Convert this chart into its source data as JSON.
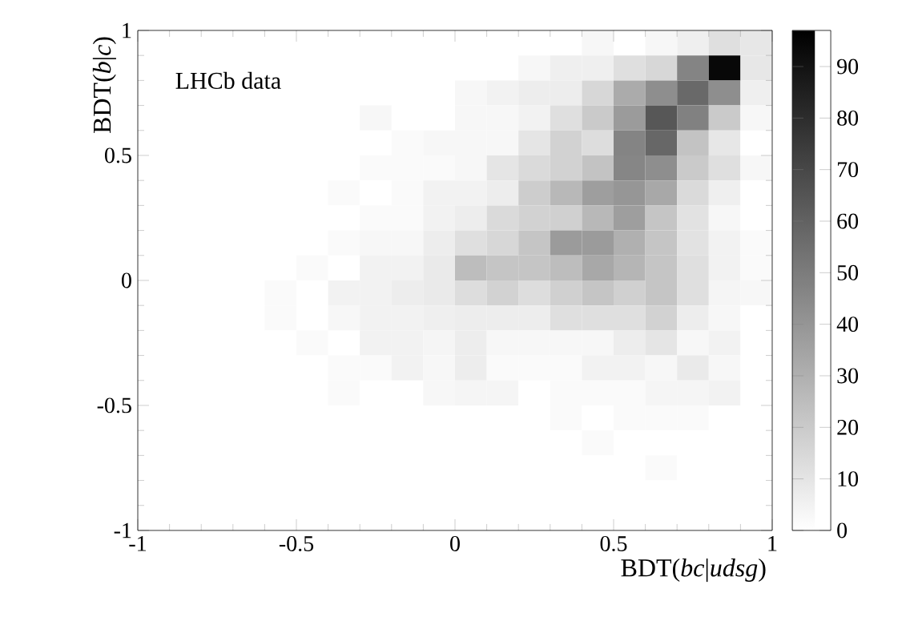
{
  "chart_data": {
    "type": "heatmap",
    "xlabel": "BDT(*bc*|*udsg*)",
    "ylabel": "BDT(*b*|*c*)",
    "annotations": [
      "LHCb data"
    ],
    "xlim": [
      -1,
      1
    ],
    "ylim": [
      -1,
      1
    ],
    "xticks": [
      -1,
      -0.5,
      0,
      0.5,
      1
    ],
    "yticks": [
      -1,
      -0.5,
      0,
      0.5,
      1
    ],
    "clim": [
      0,
      97
    ],
    "cticks": [
      0,
      10,
      20,
      30,
      40,
      50,
      60,
      70,
      80,
      90
    ],
    "cells": [
      [
        0,
        0,
        0,
        0,
        0,
        0,
        0,
        0,
        0,
        0,
        0,
        0,
        0,
        0,
        3,
        0,
        3,
        6,
        12,
        9
      ],
      [
        0,
        0,
        0,
        0,
        0,
        0,
        0,
        0,
        0,
        0,
        0,
        0,
        3,
        6,
        6,
        12,
        15,
        47,
        94,
        9
      ],
      [
        0,
        0,
        0,
        0,
        0,
        0,
        0,
        0,
        0,
        0,
        3,
        5,
        7,
        7,
        15,
        32,
        43,
        57,
        43,
        6
      ],
      [
        0,
        0,
        0,
        0,
        0,
        0,
        0,
        3,
        0,
        0,
        3,
        3,
        5,
        12,
        20,
        38,
        64,
        48,
        20,
        3
      ],
      [
        0,
        0,
        0,
        0,
        0,
        0,
        0,
        0,
        2,
        3,
        3,
        3,
        10,
        17,
        13,
        47,
        58,
        23,
        9,
        0
      ],
      [
        0,
        0,
        0,
        0,
        0,
        0,
        0,
        2,
        2,
        2,
        3,
        10,
        14,
        17,
        23,
        46,
        43,
        20,
        12,
        3
      ],
      [
        0,
        0,
        0,
        0,
        0,
        0,
        2,
        0,
        2,
        5,
        5,
        7,
        19,
        27,
        37,
        40,
        33,
        14,
        6,
        0
      ],
      [
        0,
        0,
        0,
        0,
        0,
        0,
        0,
        2,
        2,
        5,
        7,
        14,
        17,
        18,
        27,
        37,
        22,
        11,
        3,
        0
      ],
      [
        0,
        0,
        0,
        0,
        0,
        0,
        2,
        3,
        3,
        7,
        12,
        15,
        22,
        38,
        38,
        30,
        22,
        11,
        5,
        2
      ],
      [
        0,
        0,
        0,
        0,
        0,
        2,
        0,
        5,
        5,
        8,
        25,
        22,
        22,
        25,
        33,
        28,
        22,
        12,
        5,
        2
      ],
      [
        0,
        0,
        0,
        0,
        2,
        0,
        5,
        5,
        7,
        8,
        13,
        17,
        13,
        18,
        22,
        18,
        22,
        12,
        4,
        3
      ],
      [
        0,
        0,
        0,
        0,
        2,
        0,
        3,
        5,
        5,
        6,
        7,
        7,
        7,
        12,
        12,
        12,
        17,
        7,
        3,
        0
      ],
      [
        0,
        0,
        0,
        0,
        0,
        2,
        0,
        5,
        5,
        4,
        7,
        3,
        3,
        3,
        3,
        7,
        10,
        3,
        5,
        0
      ],
      [
        0,
        0,
        0,
        0,
        0,
        0,
        2,
        2,
        5,
        3,
        7,
        2,
        2,
        2,
        5,
        5,
        3,
        8,
        3,
        0
      ],
      [
        0,
        0,
        0,
        0,
        0,
        0,
        2,
        0,
        0,
        3,
        4,
        4,
        0,
        2,
        2,
        2,
        4,
        4,
        5,
        0
      ],
      [
        0,
        0,
        0,
        0,
        0,
        0,
        0,
        0,
        0,
        0,
        0,
        0,
        0,
        2,
        0,
        2,
        2,
        2,
        0,
        0
      ],
      [
        0,
        0,
        0,
        0,
        0,
        0,
        0,
        0,
        0,
        0,
        0,
        0,
        0,
        0,
        2,
        0,
        0,
        0,
        0,
        0
      ],
      [
        0,
        0,
        0,
        0,
        0,
        0,
        0,
        0,
        0,
        0,
        0,
        0,
        0,
        0,
        0,
        0,
        2,
        0,
        0,
        0
      ],
      [
        0,
        0,
        0,
        0,
        0,
        0,
        0,
        0,
        0,
        0,
        0,
        0,
        0,
        0,
        0,
        0,
        0,
        0,
        0,
        0
      ],
      [
        0,
        0,
        0,
        0,
        0,
        0,
        0,
        0,
        0,
        0,
        0,
        0,
        0,
        0,
        0,
        0,
        0,
        0,
        0,
        0
      ]
    ]
  }
}
